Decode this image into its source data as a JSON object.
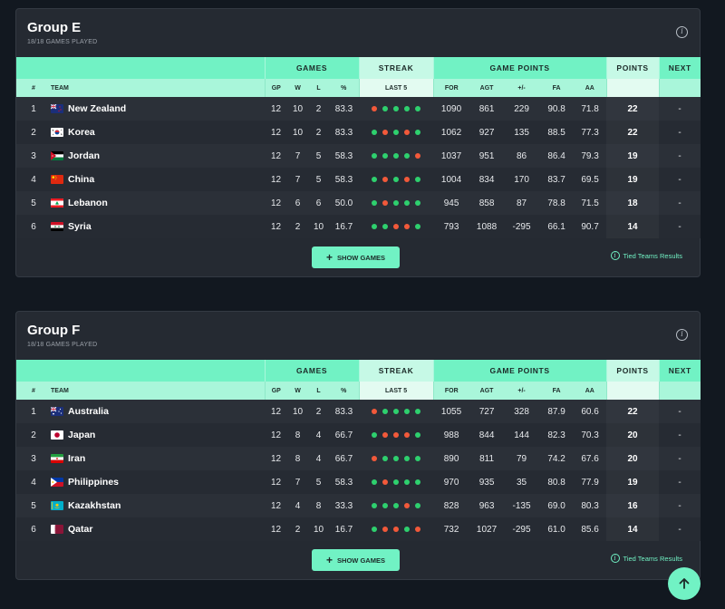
{
  "groups": [
    {
      "title": "Group E",
      "subtitle": "18/18 GAMES PLAYED",
      "header": {
        "games": "GAMES",
        "streak": "STREAK",
        "game_points": "GAME POINTS",
        "points": "POINTS",
        "next": "NEXT",
        "rank": "#",
        "team": "TEAM",
        "gp": "GP",
        "w": "W",
        "l": "L",
        "pct": "%",
        "last5": "LAST 5",
        "for": "FOR",
        "agt": "AGT",
        "diff": "+/-",
        "fa": "FA",
        "aa": "AA"
      },
      "rows": [
        {
          "rank": "1",
          "team": "New Zealand",
          "flag": "nz",
          "gp": "12",
          "w": "10",
          "l": "2",
          "pct": "83.3",
          "streak": [
            "L",
            "W",
            "W",
            "W",
            "W"
          ],
          "for": "1090",
          "agt": "861",
          "diff": "229",
          "fa": "90.8",
          "aa": "71.8",
          "points": "22",
          "next": "-"
        },
        {
          "rank": "2",
          "team": "Korea",
          "flag": "kr",
          "gp": "12",
          "w": "10",
          "l": "2",
          "pct": "83.3",
          "streak": [
            "W",
            "L",
            "W",
            "L",
            "W"
          ],
          "for": "1062",
          "agt": "927",
          "diff": "135",
          "fa": "88.5",
          "aa": "77.3",
          "points": "22",
          "next": "-"
        },
        {
          "rank": "3",
          "team": "Jordan",
          "flag": "jo",
          "gp": "12",
          "w": "7",
          "l": "5",
          "pct": "58.3",
          "streak": [
            "W",
            "W",
            "W",
            "W",
            "L"
          ],
          "for": "1037",
          "agt": "951",
          "diff": "86",
          "fa": "86.4",
          "aa": "79.3",
          "points": "19",
          "next": "-"
        },
        {
          "rank": "4",
          "team": "China",
          "flag": "cn",
          "gp": "12",
          "w": "7",
          "l": "5",
          "pct": "58.3",
          "streak": [
            "W",
            "L",
            "W",
            "L",
            "W"
          ],
          "for": "1004",
          "agt": "834",
          "diff": "170",
          "fa": "83.7",
          "aa": "69.5",
          "points": "19",
          "next": "-"
        },
        {
          "rank": "5",
          "team": "Lebanon",
          "flag": "lb",
          "gp": "12",
          "w": "6",
          "l": "6",
          "pct": "50.0",
          "streak": [
            "W",
            "L",
            "W",
            "W",
            "W"
          ],
          "for": "945",
          "agt": "858",
          "diff": "87",
          "fa": "78.8",
          "aa": "71.5",
          "points": "18",
          "next": "-"
        },
        {
          "rank": "6",
          "team": "Syria",
          "flag": "sy",
          "gp": "12",
          "w": "2",
          "l": "10",
          "pct": "16.7",
          "streak": [
            "W",
            "W",
            "L",
            "L",
            "W"
          ],
          "for": "793",
          "agt": "1088",
          "diff": "-295",
          "fa": "66.1",
          "aa": "90.7",
          "points": "14",
          "next": "-"
        }
      ],
      "show_games": "SHOW GAMES",
      "tied": "Tied Teams Results"
    },
    {
      "title": "Group F",
      "subtitle": "18/18 GAMES PLAYED",
      "header": {
        "games": "GAMES",
        "streak": "STREAK",
        "game_points": "GAME POINTS",
        "points": "POINTS",
        "next": "NEXT",
        "rank": "#",
        "team": "TEAM",
        "gp": "GP",
        "w": "W",
        "l": "L",
        "pct": "%",
        "last5": "LAST 5",
        "for": "FOR",
        "agt": "AGT",
        "diff": "+/-",
        "fa": "FA",
        "aa": "AA"
      },
      "rows": [
        {
          "rank": "1",
          "team": "Australia",
          "flag": "au",
          "gp": "12",
          "w": "10",
          "l": "2",
          "pct": "83.3",
          "streak": [
            "L",
            "W",
            "W",
            "W",
            "W"
          ],
          "for": "1055",
          "agt": "727",
          "diff": "328",
          "fa": "87.9",
          "aa": "60.6",
          "points": "22",
          "next": "-"
        },
        {
          "rank": "2",
          "team": "Japan",
          "flag": "jp",
          "gp": "12",
          "w": "8",
          "l": "4",
          "pct": "66.7",
          "streak": [
            "W",
            "L",
            "L",
            "L",
            "W"
          ],
          "for": "988",
          "agt": "844",
          "diff": "144",
          "fa": "82.3",
          "aa": "70.3",
          "points": "20",
          "next": "-"
        },
        {
          "rank": "3",
          "team": "Iran",
          "flag": "ir",
          "gp": "12",
          "w": "8",
          "l": "4",
          "pct": "66.7",
          "streak": [
            "L",
            "W",
            "W",
            "W",
            "W"
          ],
          "for": "890",
          "agt": "811",
          "diff": "79",
          "fa": "74.2",
          "aa": "67.6",
          "points": "20",
          "next": "-"
        },
        {
          "rank": "4",
          "team": "Philippines",
          "flag": "ph",
          "gp": "12",
          "w": "7",
          "l": "5",
          "pct": "58.3",
          "streak": [
            "W",
            "L",
            "W",
            "W",
            "W"
          ],
          "for": "970",
          "agt": "935",
          "diff": "35",
          "fa": "80.8",
          "aa": "77.9",
          "points": "19",
          "next": "-"
        },
        {
          "rank": "5",
          "team": "Kazakhstan",
          "flag": "kz",
          "gp": "12",
          "w": "4",
          "l": "8",
          "pct": "33.3",
          "streak": [
            "W",
            "W",
            "W",
            "L",
            "W"
          ],
          "for": "828",
          "agt": "963",
          "diff": "-135",
          "fa": "69.0",
          "aa": "80.3",
          "points": "16",
          "next": "-"
        },
        {
          "rank": "6",
          "team": "Qatar",
          "flag": "qa",
          "gp": "12",
          "w": "2",
          "l": "10",
          "pct": "16.7",
          "streak": [
            "W",
            "L",
            "L",
            "W",
            "L"
          ],
          "for": "732",
          "agt": "1027",
          "diff": "-295",
          "fa": "61.0",
          "aa": "85.6",
          "points": "14",
          "next": "-"
        }
      ],
      "show_games": "SHOW GAMES",
      "tied": "Tied Teams Results"
    }
  ],
  "colors": {
    "accent": "#71f2c4",
    "win": "#2ed06e",
    "loss": "#f2593a",
    "card": "#252a32",
    "page": "#121820"
  },
  "icons": {
    "info": "info-circle-icon",
    "plus": "plus-icon",
    "scroll_top": "arrow-up-icon"
  }
}
